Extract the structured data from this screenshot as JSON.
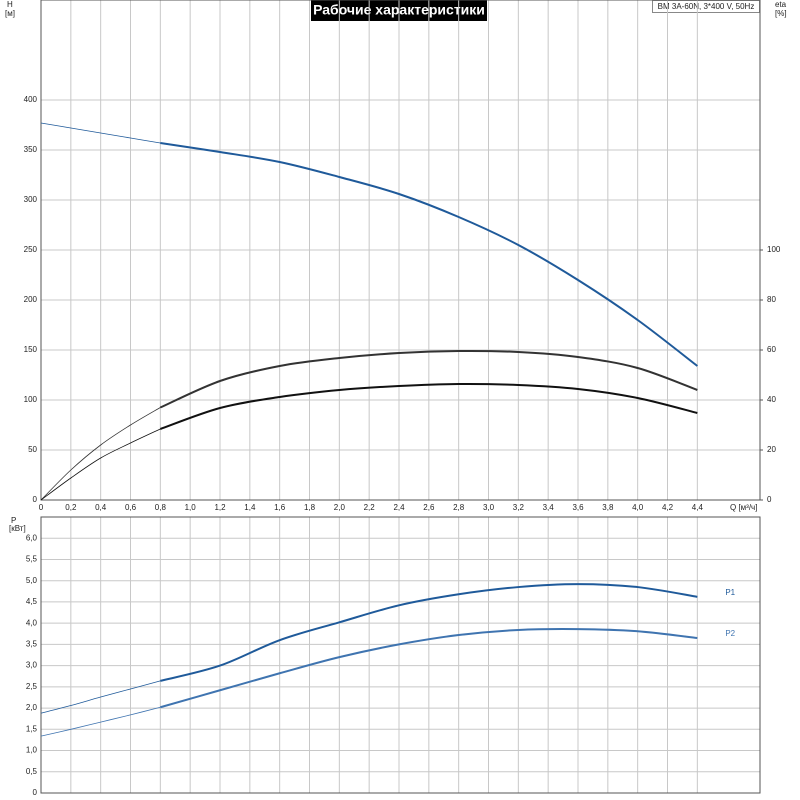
{
  "chart_data": [
    {
      "type": "line",
      "title": "Рабочие характеристики",
      "subtitle": "BM 3A-60N, 3*400 V, 50Hz",
      "y_label": "H",
      "y_unit": "[м]",
      "y2_label": "eta",
      "y2_unit": "[%]",
      "xlabel": "Q [м³/ч]",
      "x": [
        0,
        0.2,
        0.4,
        0.6,
        0.8,
        1.2,
        1.6,
        2.0,
        2.4,
        2.8,
        3.2,
        3.6,
        4.0,
        4.4
      ],
      "xlim": [
        0,
        4.8
      ],
      "xticks": [
        0,
        {
          "value": 0.2,
          "label": "0,2"
        },
        {
          "value": 0.4,
          "label": "0,4"
        },
        {
          "value": 0.6,
          "label": "0,6"
        },
        {
          "value": 0.8,
          "label": "0,8"
        },
        {
          "value": 1.0,
          "label": "1,0"
        },
        {
          "value": 1.2,
          "label": "1,2"
        },
        {
          "value": 1.4,
          "label": "1,4"
        },
        {
          "value": 1.6,
          "label": "1,6"
        },
        {
          "value": 1.8,
          "label": "1,8"
        },
        {
          "value": 2.0,
          "label": "2,0"
        },
        {
          "value": 2.2,
          "label": "2,2"
        },
        {
          "value": 2.4,
          "label": "2,4"
        },
        {
          "value": 2.6,
          "label": "2,6"
        },
        {
          "value": 2.8,
          "label": "2,8"
        },
        {
          "value": 3.0,
          "label": "3,0"
        },
        {
          "value": 3.2,
          "label": "3,2"
        },
        {
          "value": 3.4,
          "label": "3,4"
        },
        {
          "value": 3.6,
          "label": "3,6"
        },
        {
          "value": 3.8,
          "label": "3,8"
        },
        {
          "value": 4.0,
          "label": "4,0"
        },
        {
          "value": 4.2,
          "label": "4,2"
        },
        {
          "value": 4.4,
          "label": "4,4"
        }
      ],
      "ylim": [
        0,
        500
      ],
      "yticks": [
        0,
        50,
        100,
        150,
        200,
        250,
        300,
        350,
        400
      ],
      "y2lim": [
        0,
        200
      ],
      "y2ticks": [
        0,
        20,
        40,
        60,
        80,
        100
      ],
      "bold_from": 0.8,
      "series": [
        {
          "color": "#1f5a9a",
          "values": [
            377,
            372,
            367,
            362,
            357,
            348,
            338,
            323,
            306,
            283,
            255,
            220,
            180,
            134
          ]
        },
        {
          "color": "#333333",
          "axis": "y2",
          "values": [
            0,
            12,
            22,
            30,
            37,
            47.6,
            53.6,
            56.8,
            58.8,
            59.6,
            59.2,
            57.2,
            52.8,
            44
          ]
        },
        {
          "color": "#111111",
          "axis": "y2",
          "values": [
            0,
            8.8,
            16.8,
            22.8,
            28.4,
            36.8,
            41.2,
            44,
            45.6,
            46.4,
            46,
            44.4,
            40.8,
            34.8
          ]
        }
      ]
    },
    {
      "type": "line",
      "y_label": "P",
      "y_unit": "[кВт]",
      "x": [
        0,
        0.2,
        0.4,
        0.6,
        0.8,
        1.2,
        1.6,
        2.0,
        2.4,
        2.8,
        3.2,
        3.6,
        4.0,
        4.4
      ],
      "xlim": [
        0,
        4.8
      ],
      "xgrid": [
        0,
        0.2,
        0.4,
        0.6,
        0.8,
        1.0,
        1.2,
        1.4,
        1.6,
        1.8,
        2.0,
        2.2,
        2.4,
        2.6,
        2.8,
        3.0,
        3.2,
        3.4,
        3.6,
        3.8,
        4.0,
        4.2,
        4.4
      ],
      "ylim": [
        0,
        6.5
      ],
      "yticks": [
        0,
        {
          "value": 0.5,
          "label": "0,5"
        },
        {
          "value": 1.0,
          "label": "1,0"
        },
        {
          "value": 1.5,
          "label": "1,5"
        },
        {
          "value": 2.0,
          "label": "2,0"
        },
        {
          "value": 2.5,
          "label": "2,5"
        },
        {
          "value": 3.0,
          "label": "3,0"
        },
        {
          "value": 3.5,
          "label": "3,5"
        },
        {
          "value": 4.0,
          "label": "4,0"
        },
        {
          "value": 4.5,
          "label": "4,5"
        },
        {
          "value": 5.0,
          "label": "5,0"
        },
        {
          "value": 5.5,
          "label": "5,5"
        },
        {
          "value": 6.0,
          "label": "6,0"
        }
      ],
      "bold_from": 0.8,
      "series": [
        {
          "name": "P1",
          "color": "#1f5a9a",
          "values": [
            1.88,
            2.06,
            2.26,
            2.45,
            2.64,
            3.0,
            3.6,
            4.02,
            4.42,
            4.68,
            4.85,
            4.92,
            4.85,
            4.62
          ]
        },
        {
          "name": "P2",
          "color": "#3f74b0",
          "values": [
            1.34,
            1.5,
            1.67,
            1.84,
            2.02,
            2.42,
            2.82,
            3.2,
            3.5,
            3.72,
            3.84,
            3.86,
            3.81,
            3.65
          ]
        }
      ]
    }
  ]
}
